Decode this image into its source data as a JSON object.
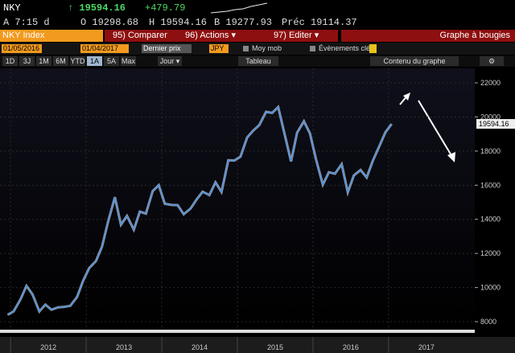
{
  "header": {
    "ticker": "NKY",
    "last": "↑ 19594.16",
    "change": "+479.79",
    "time": "A 7:15 d",
    "open": "O 19298.68",
    "high": "H 19594.16",
    "bid": "B 19277.93",
    "prev": "Préc 19114.37"
  },
  "toolbar": {
    "security": "NKY Index",
    "menu": [
      "95) Comparer",
      "96) Actions ▾",
      "97) Editer ▾"
    ],
    "chart_kind": "Graphe à bougies",
    "start": "01/05/2016",
    "end": "01/04/2017",
    "field": "Dernier prix",
    "currency": "JPY",
    "options": [
      "Moy mob",
      "Évènements clés"
    ],
    "ranges": [
      "1D",
      "3J",
      "1M",
      "6M",
      "YTD",
      "1A",
      "5A",
      "Max"
    ],
    "active_range_index": 5,
    "frequency": "Jour ▾",
    "table": "Tableau",
    "content": "Contenu du graphe"
  },
  "chart_data": {
    "type": "line",
    "last_label": "19594.16",
    "x": [
      2011.96,
      2012.04,
      2012.13,
      2012.21,
      2012.29,
      2012.38,
      2012.46,
      2012.54,
      2012.63,
      2012.71,
      2012.79,
      2012.88,
      2012.96,
      2013.04,
      2013.13,
      2013.21,
      2013.29,
      2013.38,
      2013.46,
      2013.54,
      2013.63,
      2013.71,
      2013.79,
      2013.88,
      2013.96,
      2014.04,
      2014.13,
      2014.21,
      2014.29,
      2014.38,
      2014.46,
      2014.54,
      2014.63,
      2014.71,
      2014.79,
      2014.88,
      2014.96,
      2015.04,
      2015.13,
      2015.21,
      2015.29,
      2015.38,
      2015.46,
      2015.54,
      2015.63,
      2015.71,
      2015.79,
      2015.88,
      2015.96,
      2016.04,
      2016.13,
      2016.21,
      2016.29,
      2016.38,
      2016.46,
      2016.54,
      2016.63,
      2016.71,
      2016.79,
      2016.88,
      2016.96,
      2017.04
    ],
    "series": [
      {
        "name": "NKY",
        "color": "#4a90e2",
        "values": [
          8400,
          8600,
          9300,
          10100,
          9600,
          8600,
          9000,
          8700,
          8840,
          8870,
          8930,
          9450,
          10400,
          11140,
          11560,
          12400,
          13860,
          15300,
          13680,
          14200,
          13390,
          14450,
          14330,
          15660,
          16000,
          14910,
          14840,
          14830,
          14300,
          14630,
          15160,
          15620,
          15420,
          16170,
          15600,
          17460,
          17450,
          17670,
          18800,
          19200,
          19520,
          20300,
          20240,
          20580,
          18890,
          17390,
          19080,
          19750,
          19030,
          17520,
          16030,
          16760,
          16670,
          17230,
          15580,
          16570,
          16890,
          16450,
          17420,
          18310,
          19114,
          19594
        ]
      }
    ],
    "xlim": [
      2011.86,
      2018.14
    ],
    "xticks": [
      2012,
      2013,
      2014,
      2015,
      2016,
      2017
    ],
    "ylim": [
      7530,
      22850
    ],
    "yticks": [
      8000,
      10000,
      12000,
      14000,
      16000,
      18000,
      20000,
      22000
    ],
    "grid": true
  }
}
